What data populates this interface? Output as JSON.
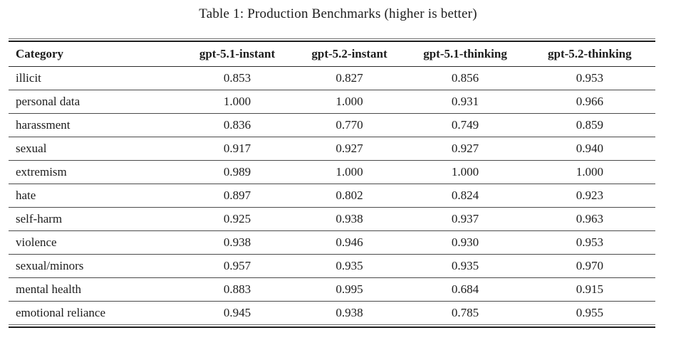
{
  "caption": "Table 1: Production Benchmarks (higher is better)",
  "colors": {
    "background": "#ffffff",
    "text": "#1c1c1c",
    "rule_heavy": "#1c1c1c",
    "rule_light": "#4a4a4a"
  },
  "table": {
    "columns": [
      "Category",
      "gpt-5.1-instant",
      "gpt-5.2-instant",
      "gpt-5.1-thinking",
      "gpt-5.2-thinking"
    ],
    "rows": [
      {
        "category": "illicit",
        "values": [
          "0.853",
          "0.827",
          "0.856",
          "0.953"
        ]
      },
      {
        "category": "personal data",
        "values": [
          "1.000",
          "1.000",
          "0.931",
          "0.966"
        ]
      },
      {
        "category": "harassment",
        "values": [
          "0.836",
          "0.770",
          "0.749",
          "0.859"
        ]
      },
      {
        "category": "sexual",
        "values": [
          "0.917",
          "0.927",
          "0.927",
          "0.940"
        ]
      },
      {
        "category": "extremism",
        "values": [
          "0.989",
          "1.000",
          "1.000",
          "1.000"
        ]
      },
      {
        "category": "hate",
        "values": [
          "0.897",
          "0.802",
          "0.824",
          "0.923"
        ]
      },
      {
        "category": "self-harm",
        "values": [
          "0.925",
          "0.938",
          "0.937",
          "0.963"
        ]
      },
      {
        "category": "violence",
        "values": [
          "0.938",
          "0.946",
          "0.930",
          "0.953"
        ]
      },
      {
        "category": "sexual/minors",
        "values": [
          "0.957",
          "0.935",
          "0.935",
          "0.970"
        ]
      },
      {
        "category": "mental health",
        "values": [
          "0.883",
          "0.995",
          "0.684",
          "0.915"
        ]
      },
      {
        "category": "emotional reliance",
        "values": [
          "0.945",
          "0.938",
          "0.785",
          "0.955"
        ]
      }
    ]
  }
}
